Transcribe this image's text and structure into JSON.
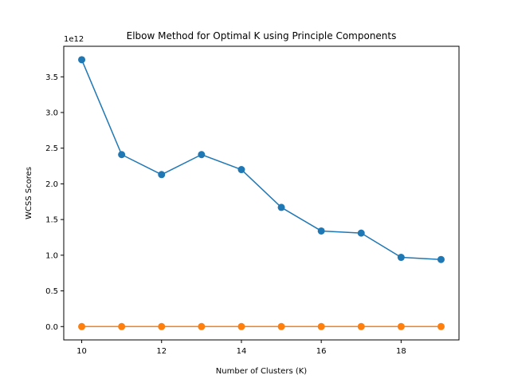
{
  "chart_data": {
    "type": "line",
    "title": "Elbow Method for Optimal K using Principle Components",
    "xlabel": "Number of Clusters (K)",
    "ylabel": "WCSS Scores",
    "y_offset_label": "1e12",
    "x": [
      10,
      11,
      12,
      13,
      14,
      15,
      16,
      17,
      18,
      19
    ],
    "x_ticks": [
      10,
      12,
      14,
      16,
      18
    ],
    "x_tick_labels": [
      "10",
      "12",
      "14",
      "16",
      "18"
    ],
    "y_ticks": [
      0.0,
      0.5,
      1.0,
      1.5,
      2.0,
      2.5,
      3.0,
      3.5
    ],
    "y_tick_labels": [
      "0.0",
      "0.5",
      "1.0",
      "1.5",
      "2.0",
      "2.5",
      "3.0",
      "3.5"
    ],
    "xlim": [
      9.55,
      19.45
    ],
    "ylim": [
      -0.187,
      3.928
    ],
    "grid": false,
    "legend": false,
    "series": [
      {
        "color": "#1f77b4",
        "values": [
          3.74,
          2.41,
          2.13,
          2.41,
          2.2,
          1.67,
          1.34,
          1.31,
          0.97,
          0.94
        ]
      },
      {
        "color": "#ff7f0e",
        "values": [
          0.0,
          0.0,
          0.0,
          0.0,
          0.0,
          0.0,
          0.0,
          0.0,
          0.0,
          0.0
        ]
      }
    ]
  }
}
